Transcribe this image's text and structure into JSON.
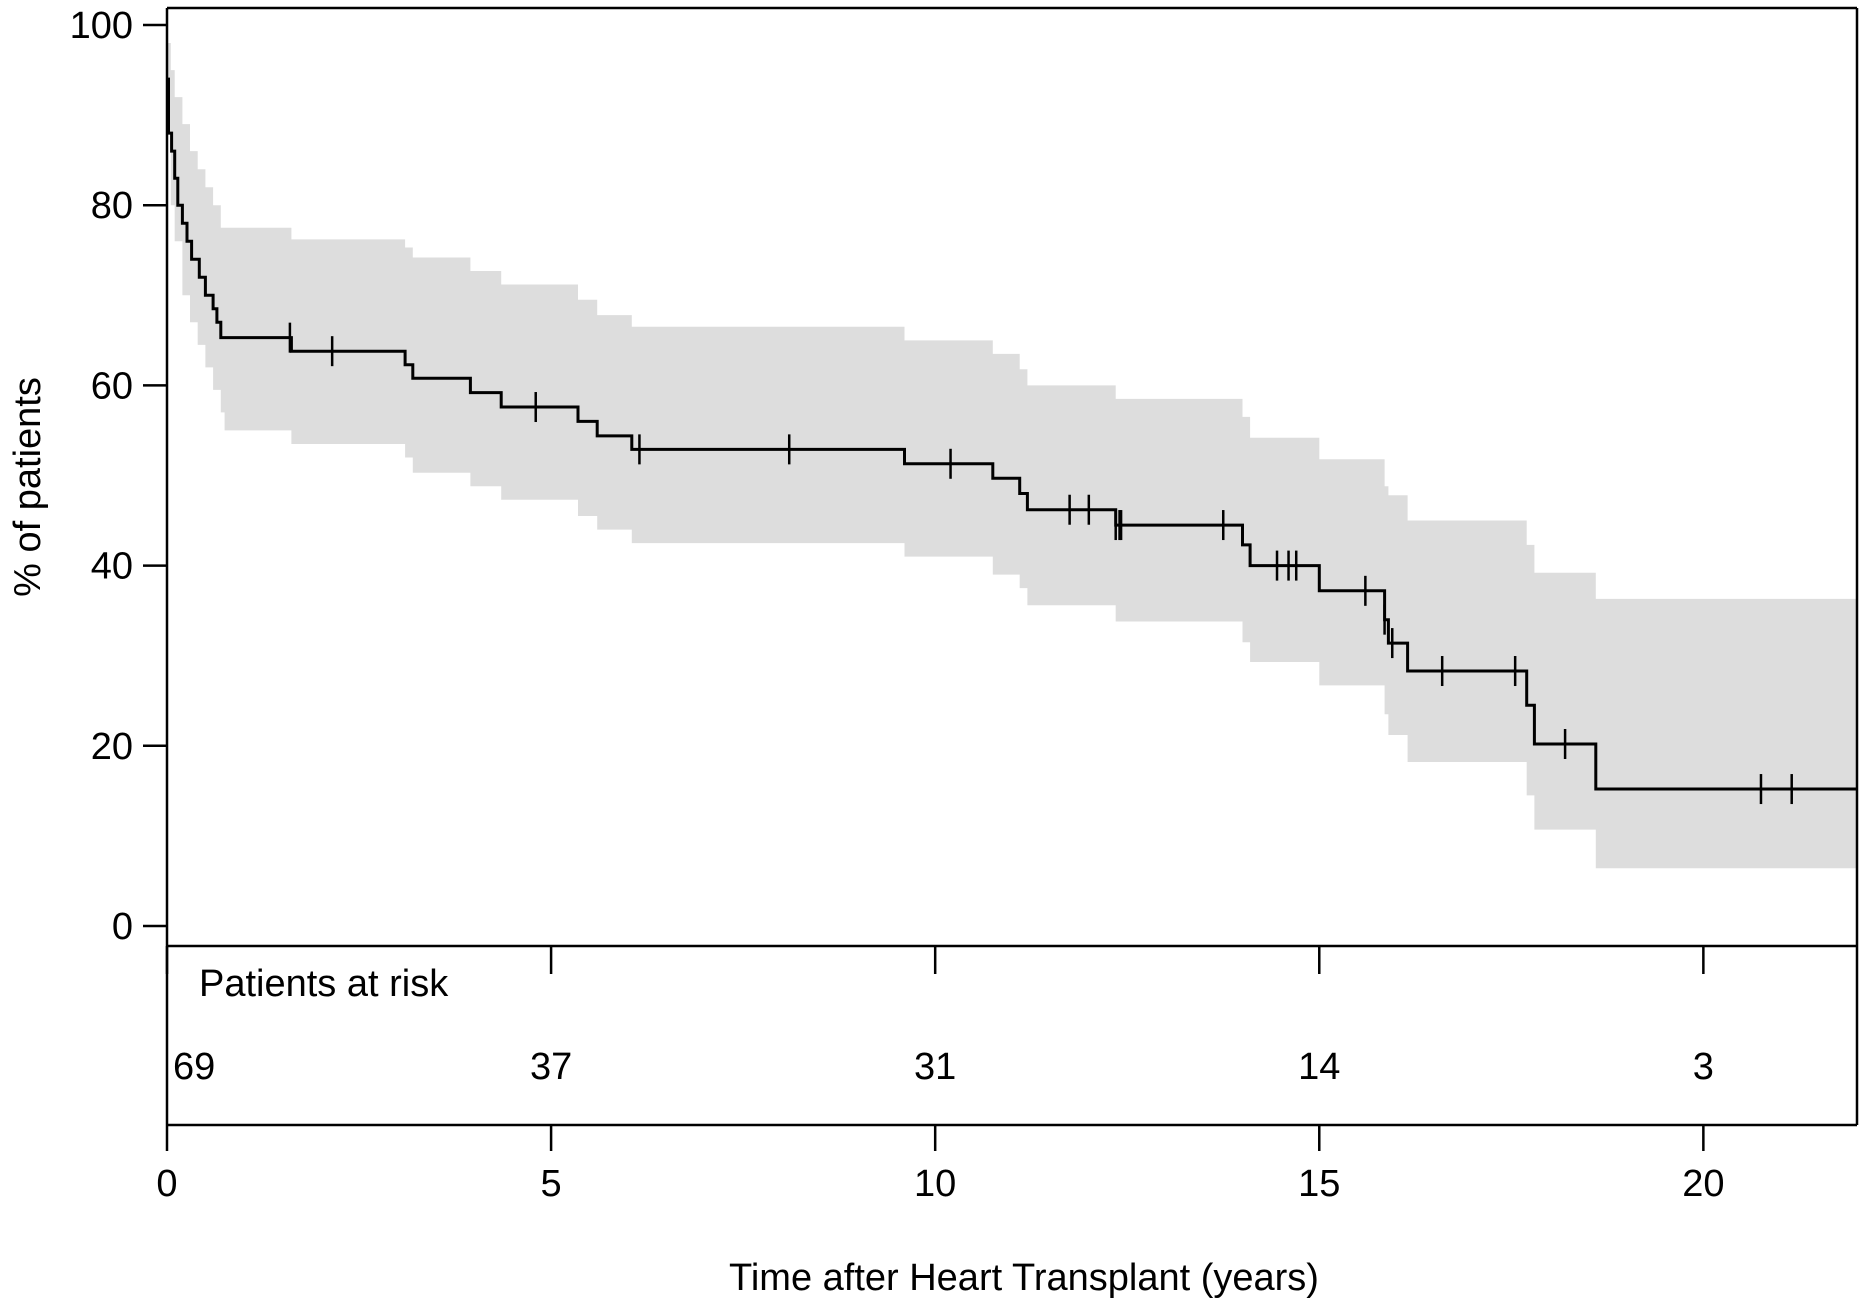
{
  "chart_data": {
    "type": "line",
    "subtype": "kaplan-meier",
    "title": "",
    "xlabel": "Time after Heart Transplant (years)",
    "ylabel": "% of patients",
    "xlim": [
      0,
      22
    ],
    "ylim": [
      0,
      100
    ],
    "xticks": [
      0,
      5,
      10,
      15,
      20
    ],
    "yticks": [
      0,
      20,
      40,
      60,
      80,
      100
    ],
    "grid": false,
    "colors": {
      "line": "#000000",
      "ci_band": "#dddddd"
    },
    "series": [
      {
        "steps": [
          [
            0,
            94
          ],
          [
            0.02,
            88
          ],
          [
            0.06,
            86
          ],
          [
            0.1,
            83
          ],
          [
            0.14,
            80
          ],
          [
            0.2,
            78
          ],
          [
            0.26,
            76
          ],
          [
            0.32,
            74
          ],
          [
            0.42,
            72
          ],
          [
            0.5,
            70
          ],
          [
            0.55,
            70
          ],
          [
            0.6,
            68.5
          ],
          [
            0.65,
            67
          ],
          [
            0.7,
            65.3
          ],
          [
            1.6,
            65.3
          ],
          [
            1.62,
            63.8
          ],
          [
            3.0,
            63.8
          ],
          [
            3.1,
            62.3
          ],
          [
            3.2,
            60.8
          ],
          [
            3.9,
            60.8
          ],
          [
            3.95,
            59.2
          ],
          [
            4.3,
            59.2
          ],
          [
            4.35,
            57.6
          ],
          [
            5.2,
            57.6
          ],
          [
            5.35,
            56
          ],
          [
            5.6,
            54.4
          ],
          [
            6.0,
            54.4
          ],
          [
            6.05,
            52.9
          ],
          [
            9.55,
            52.9
          ],
          [
            9.6,
            51.3
          ],
          [
            10.7,
            51.3
          ],
          [
            10.75,
            49.7
          ],
          [
            11.05,
            49.7
          ],
          [
            11.1,
            48
          ],
          [
            11.2,
            46.2
          ],
          [
            12.3,
            46.2
          ],
          [
            12.35,
            44.5
          ],
          [
            13.9,
            44.5
          ],
          [
            14.0,
            42.3
          ],
          [
            14.1,
            40
          ],
          [
            14.95,
            40
          ],
          [
            15.0,
            37.2
          ],
          [
            15.8,
            37.2
          ],
          [
            15.85,
            34
          ],
          [
            15.9,
            31.4
          ],
          [
            16.1,
            31.4
          ],
          [
            16.15,
            28.3
          ],
          [
            17.6,
            28.3
          ],
          [
            17.7,
            24.5
          ],
          [
            17.8,
            20.2
          ],
          [
            18.55,
            20.2
          ],
          [
            18.6,
            15.2
          ],
          [
            22,
            15.2
          ]
        ],
        "ci_upper": [
          [
            0,
            98
          ],
          [
            0.05,
            95
          ],
          [
            0.1,
            92
          ],
          [
            0.2,
            89
          ],
          [
            0.3,
            86
          ],
          [
            0.4,
            84
          ],
          [
            0.5,
            82
          ],
          [
            0.6,
            80
          ],
          [
            0.7,
            77.5
          ],
          [
            1.6,
            77.5
          ],
          [
            1.62,
            76.2
          ],
          [
            3.0,
            76.2
          ],
          [
            3.1,
            75.3
          ],
          [
            3.2,
            74.2
          ],
          [
            3.9,
            74.2
          ],
          [
            3.95,
            72.7
          ],
          [
            4.3,
            72.7
          ],
          [
            4.35,
            71.2
          ],
          [
            5.2,
            71.2
          ],
          [
            5.35,
            69.5
          ],
          [
            5.6,
            67.8
          ],
          [
            6.0,
            67.8
          ],
          [
            6.05,
            66.5
          ],
          [
            9.55,
            66.5
          ],
          [
            9.6,
            65
          ],
          [
            10.7,
            65
          ],
          [
            10.75,
            63.5
          ],
          [
            11.05,
            63.5
          ],
          [
            11.1,
            61.8
          ],
          [
            11.2,
            60
          ],
          [
            12.3,
            60
          ],
          [
            12.35,
            58.5
          ],
          [
            13.9,
            58.5
          ],
          [
            14.0,
            56.5
          ],
          [
            14.1,
            54.2
          ],
          [
            14.95,
            54.2
          ],
          [
            15.0,
            51.8
          ],
          [
            15.8,
            51.8
          ],
          [
            15.85,
            48.8
          ],
          [
            15.9,
            47.8
          ],
          [
            16.1,
            47.8
          ],
          [
            16.15,
            45
          ],
          [
            17.6,
            45
          ],
          [
            17.7,
            42.3
          ],
          [
            17.8,
            39.2
          ],
          [
            18.55,
            39.2
          ],
          [
            18.6,
            36.3
          ],
          [
            22,
            36.3
          ]
        ],
        "ci_lower": [
          [
            0,
            88
          ],
          [
            0.05,
            80
          ],
          [
            0.1,
            76
          ],
          [
            0.2,
            70
          ],
          [
            0.3,
            67
          ],
          [
            0.4,
            64.5
          ],
          [
            0.5,
            62
          ],
          [
            0.6,
            59.5
          ],
          [
            0.7,
            57
          ],
          [
            0.75,
            55
          ],
          [
            1.6,
            55
          ],
          [
            1.62,
            53.5
          ],
          [
            3.0,
            53.5
          ],
          [
            3.1,
            52
          ],
          [
            3.2,
            50.3
          ],
          [
            3.9,
            50.3
          ],
          [
            3.95,
            48.8
          ],
          [
            4.3,
            48.8
          ],
          [
            4.35,
            47.3
          ],
          [
            5.2,
            47.3
          ],
          [
            5.35,
            45.5
          ],
          [
            5.6,
            44
          ],
          [
            6.0,
            44
          ],
          [
            6.05,
            42.5
          ],
          [
            9.55,
            42.5
          ],
          [
            9.6,
            41
          ],
          [
            10.7,
            41
          ],
          [
            10.75,
            39
          ],
          [
            11.05,
            39
          ],
          [
            11.1,
            37.5
          ],
          [
            11.2,
            35.6
          ],
          [
            12.3,
            35.6
          ],
          [
            12.35,
            33.8
          ],
          [
            13.9,
            33.8
          ],
          [
            14.0,
            31.5
          ],
          [
            14.1,
            29.3
          ],
          [
            14.95,
            29.3
          ],
          [
            15.0,
            26.7
          ],
          [
            15.8,
            26.7
          ],
          [
            15.85,
            23.5
          ],
          [
            15.9,
            21.2
          ],
          [
            16.1,
            21.2
          ],
          [
            16.15,
            18.2
          ],
          [
            17.6,
            18.2
          ],
          [
            17.7,
            14.5
          ],
          [
            17.8,
            10.7
          ],
          [
            18.55,
            10.7
          ],
          [
            18.6,
            6.4
          ],
          [
            22,
            6.4
          ]
        ],
        "censor_times": [
          1.6,
          2.15,
          4.8,
          6.15,
          8.1,
          10.2,
          11.75,
          12.0,
          12.35,
          12.4,
          12.42,
          13.75,
          14.45,
          14.6,
          14.7,
          15.6,
          15.85,
          15.95,
          16.6,
          17.55,
          18.2,
          20.75,
          21.15
        ]
      }
    ],
    "risk_table": {
      "title": "Patients at risk",
      "times": [
        0,
        5,
        10,
        15,
        20
      ],
      "counts": [
        "69",
        "37",
        "31",
        "14",
        "3"
      ]
    }
  }
}
